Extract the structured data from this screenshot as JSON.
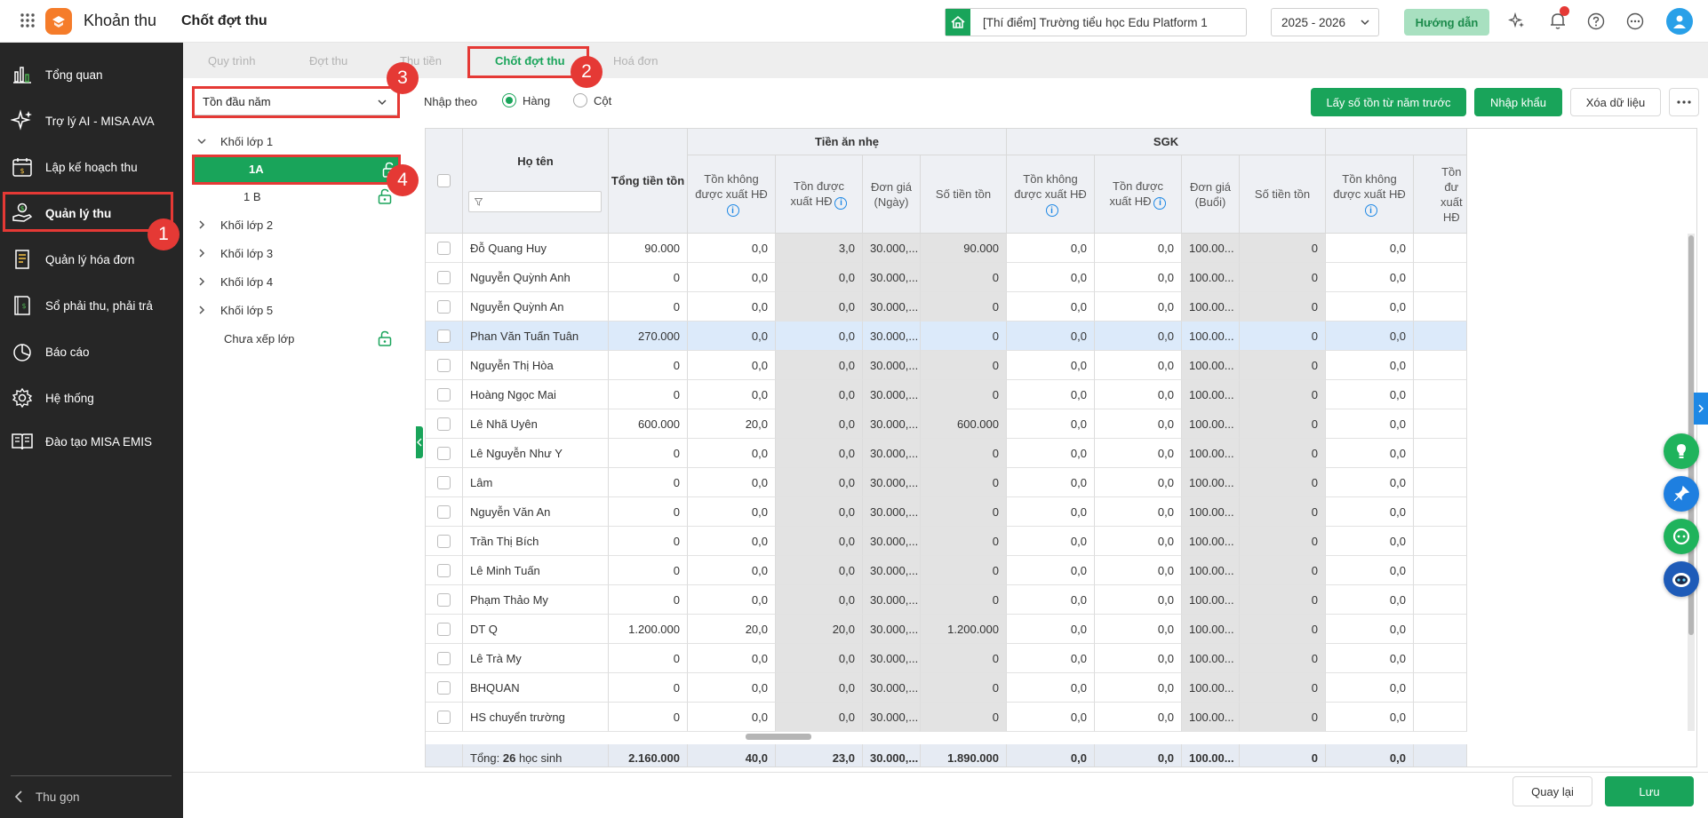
{
  "header": {
    "app_title": "Khoản thu",
    "page_title": "Chốt đợt thu",
    "school": "[Thí điểm] Trường tiểu học Edu Platform 1",
    "year": "2025 - 2026",
    "guide_label": "Hướng dẫn"
  },
  "sidebar": {
    "items": [
      {
        "label": "Tổng quan",
        "icon": "bar-chart-icon"
      },
      {
        "label": "Trợ lý AI - MISA AVA",
        "icon": "sparkle-icon"
      },
      {
        "label": "Lập kế hoạch thu",
        "icon": "calendar-money-icon"
      },
      {
        "label": "Quản lý thu",
        "icon": "hand-money-icon"
      },
      {
        "label": "Quản lý hóa đơn",
        "icon": "invoice-icon"
      },
      {
        "label": "Sổ phải thu, phải trả",
        "icon": "ledger-icon"
      },
      {
        "label": "Báo cáo",
        "icon": "pie-chart-icon"
      },
      {
        "label": "Hệ thống",
        "icon": "gear-icon"
      },
      {
        "label": "Đào tạo MISA EMIS",
        "icon": "book-icon"
      }
    ],
    "collapse_label": "Thu gọn"
  },
  "tabs": [
    "Quy trình",
    "Đợt thu",
    "Thu tiền",
    "Chốt đợt thu",
    "Hoá đơn"
  ],
  "callouts": [
    "1",
    "2",
    "3",
    "4"
  ],
  "toolbar": {
    "type_select": "Tồn đầu năm",
    "input_by_label": "Nhập theo",
    "radio_row": "Hàng",
    "radio_col": "Cột",
    "btn_prev_year": "Lấy số tồn từ năm trước",
    "btn_import": "Nhập khẩu",
    "btn_clear": "Xóa dữ liệu"
  },
  "tree": [
    {
      "label": "Khối lớp 1",
      "level": 0,
      "expanded": true
    },
    {
      "label": "1A",
      "level": 1,
      "selected": true,
      "lock": true
    },
    {
      "label": "1 B",
      "level": 1,
      "lock": true
    },
    {
      "label": "Khối lớp 2",
      "level": 0
    },
    {
      "label": "Khối lớp 3",
      "level": 0
    },
    {
      "label": "Khối lớp 4",
      "level": 0
    },
    {
      "label": "Khối lớp 5",
      "level": 0
    },
    {
      "label": "Chưa xếp lớp",
      "level": 0,
      "lock": true
    }
  ],
  "table": {
    "col_name": "Họ tên",
    "col_total": "Tổng tiền tồn",
    "group1": "Tiền ăn nhẹ",
    "group2": "SGK",
    "sub_headers": {
      "not_invoiced": "Tồn không được xuất HĐ",
      "invoiced": "Tồn được xuất HĐ",
      "price_day": "Đơn giá (Ngày)",
      "price_session": "Đơn giá (Buổi)",
      "amount": "Số tiền tồn",
      "next_truncated": "Tồn đư xuất HĐ"
    },
    "rows": [
      {
        "name": "Đỗ Quang Huy",
        "total": "90.000",
        "a1": "0,0",
        "a2": "3,0",
        "a3": "30.000,...",
        "a4": "90.000",
        "b1": "0,0",
        "b2": "0,0",
        "b3": "100.00...",
        "b4": "0",
        "c1": "0,0"
      },
      {
        "name": "Nguyễn Quỳnh Anh",
        "total": "0",
        "a1": "0,0",
        "a2": "0,0",
        "a3": "30.000,...",
        "a4": "0",
        "b1": "0,0",
        "b2": "0,0",
        "b3": "100.00...",
        "b4": "0",
        "c1": "0,0"
      },
      {
        "name": "Nguyễn Quỳnh An",
        "total": "0",
        "a1": "0,0",
        "a2": "0,0",
        "a3": "30.000,...",
        "a4": "0",
        "b1": "0,0",
        "b2": "0,0",
        "b3": "100.00...",
        "b4": "0",
        "c1": "0,0"
      },
      {
        "name": "Phan Văn Tuấn Tuân",
        "total": "270.000",
        "a1": "0,0",
        "a2": "0,0",
        "a3": "30.000,...",
        "a4": "0",
        "b1": "0,0",
        "b2": "0,0",
        "b3": "100.00...",
        "b4": "0",
        "c1": "0,0",
        "highlight": true
      },
      {
        "name": "Nguyễn Thị Hòa",
        "total": "0",
        "a1": "0,0",
        "a2": "0,0",
        "a3": "30.000,...",
        "a4": "0",
        "b1": "0,0",
        "b2": "0,0",
        "b3": "100.00...",
        "b4": "0",
        "c1": "0,0"
      },
      {
        "name": "Hoàng Ngọc Mai",
        "total": "0",
        "a1": "0,0",
        "a2": "0,0",
        "a3": "30.000,...",
        "a4": "0",
        "b1": "0,0",
        "b2": "0,0",
        "b3": "100.00...",
        "b4": "0",
        "c1": "0,0"
      },
      {
        "name": "Lê Nhã Uyên",
        "total": "600.000",
        "a1": "20,0",
        "a2": "0,0",
        "a3": "30.000,...",
        "a4": "600.000",
        "b1": "0,0",
        "b2": "0,0",
        "b3": "100.00...",
        "b4": "0",
        "c1": "0,0"
      },
      {
        "name": "Lê Nguyễn Như Y",
        "total": "0",
        "a1": "0,0",
        "a2": "0,0",
        "a3": "30.000,...",
        "a4": "0",
        "b1": "0,0",
        "b2": "0,0",
        "b3": "100.00...",
        "b4": "0",
        "c1": "0,0"
      },
      {
        "name": "Lâm",
        "total": "0",
        "a1": "0,0",
        "a2": "0,0",
        "a3": "30.000,...",
        "a4": "0",
        "b1": "0,0",
        "b2": "0,0",
        "b3": "100.00...",
        "b4": "0",
        "c1": "0,0"
      },
      {
        "name": "Nguyễn Văn An",
        "total": "0",
        "a1": "0,0",
        "a2": "0,0",
        "a3": "30.000,...",
        "a4": "0",
        "b1": "0,0",
        "b2": "0,0",
        "b3": "100.00...",
        "b4": "0",
        "c1": "0,0"
      },
      {
        "name": "Trần Thị Bích",
        "total": "0",
        "a1": "0,0",
        "a2": "0,0",
        "a3": "30.000,...",
        "a4": "0",
        "b1": "0,0",
        "b2": "0,0",
        "b3": "100.00...",
        "b4": "0",
        "c1": "0,0"
      },
      {
        "name": "Lê Minh Tuấn",
        "total": "0",
        "a1": "0,0",
        "a2": "0,0",
        "a3": "30.000,...",
        "a4": "0",
        "b1": "0,0",
        "b2": "0,0",
        "b3": "100.00...",
        "b4": "0",
        "c1": "0,0"
      },
      {
        "name": "Phạm Thảo My",
        "total": "0",
        "a1": "0,0",
        "a2": "0,0",
        "a3": "30.000,...",
        "a4": "0",
        "b1": "0,0",
        "b2": "0,0",
        "b3": "100.00...",
        "b4": "0",
        "c1": "0,0"
      },
      {
        "name": "DT Q",
        "total": "1.200.000",
        "a1": "20,0",
        "a2": "20,0",
        "a3": "30.000,...",
        "a4": "1.200.000",
        "b1": "0,0",
        "b2": "0,0",
        "b3": "100.00...",
        "b4": "0",
        "c1": "0,0"
      },
      {
        "name": "Lê Trà My",
        "total": "0",
        "a1": "0,0",
        "a2": "0,0",
        "a3": "30.000,...",
        "a4": "0",
        "b1": "0,0",
        "b2": "0,0",
        "b3": "100.00...",
        "b4": "0",
        "c1": "0,0"
      },
      {
        "name": "BHQUAN",
        "total": "0",
        "a1": "0,0",
        "a2": "0,0",
        "a3": "30.000,...",
        "a4": "0",
        "b1": "0,0",
        "b2": "0,0",
        "b3": "100.00...",
        "b4": "0",
        "c1": "0,0"
      },
      {
        "name": "HS chuyển trường",
        "total": "0",
        "a1": "0,0",
        "a2": "0,0",
        "a3": "30.000,...",
        "a4": "0",
        "b1": "0,0",
        "b2": "0,0",
        "b3": "100.00...",
        "b4": "0",
        "c1": "0,0"
      }
    ],
    "totals": {
      "label_prefix": "Tổng: ",
      "count": "26",
      "label_suffix": " học sinh",
      "total": "2.160.000",
      "a1": "40,0",
      "a2": "23,0",
      "a3": "30.000,...",
      "a4": "1.890.000",
      "b1": "0,0",
      "b2": "0,0",
      "b3": "100.00...",
      "b4": "0",
      "c1": "0,0"
    }
  },
  "footer": {
    "back": "Quay lại",
    "save": "Lưu"
  },
  "colors": {
    "accent_green": "#19a45a",
    "sidebar_bg": "#262626",
    "callout_red": "#e53935",
    "highlight_row": "#dceafa"
  }
}
